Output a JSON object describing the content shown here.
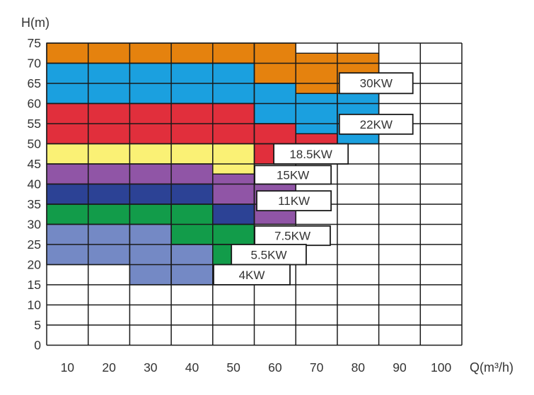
{
  "page": {
    "background": "#ffffff",
    "description": "Pump motor power selection chart: head H(m) versus flow Q(m3/h)"
  },
  "chart_data": {
    "type": "heatmap",
    "title": "",
    "xlabel": "Q(m³/h)",
    "ylabel": "H(m)",
    "xlim": [
      0,
      100
    ],
    "ylim": [
      0,
      75
    ],
    "x_step": 10,
    "y_step": 5,
    "grid": true,
    "x_ticks": [
      10,
      20,
      30,
      40,
      50,
      60,
      70,
      80,
      90,
      100
    ],
    "y_ticks": [
      75,
      70,
      65,
      60,
      55,
      50,
      45,
      40,
      35,
      30,
      25,
      20,
      15,
      10,
      5,
      0
    ],
    "colors": {
      "grid_line": "#1a1a1a",
      "box_border": "#1a1a1a",
      "box_fill": "#ffffff",
      "text": "#333333",
      "background": "#ffffff"
    },
    "regions": [
      {
        "label": "30KW",
        "power_kw": 30,
        "color": "#E5820E",
        "cells": [
          [
            0,
            50,
            70,
            75
          ],
          [
            50,
            60,
            65,
            75
          ],
          [
            60,
            80,
            62.5,
            72.5
          ]
        ]
      },
      {
        "label": "22KW",
        "power_kw": 22,
        "color": "#1BA0DF",
        "cells": [
          [
            0,
            50,
            60,
            70
          ],
          [
            50,
            60,
            55,
            65
          ],
          [
            60,
            70,
            52.5,
            62.5
          ],
          [
            70,
            80,
            50,
            62.5
          ]
        ]
      },
      {
        "label": "18.5KW",
        "power_kw": 18.5,
        "color": "#E12F3C",
        "cells": [
          [
            0,
            50,
            50,
            60
          ],
          [
            50,
            60,
            50,
            55
          ],
          [
            50,
            55,
            45,
            50
          ],
          [
            60,
            70,
            50,
            52.5
          ]
        ]
      },
      {
        "label": "15KW",
        "power_kw": 15,
        "color": "#FAF175",
        "cells": [
          [
            0,
            40,
            45,
            50
          ],
          [
            40,
            50,
            42.5,
            50
          ]
        ]
      },
      {
        "label": "11KW",
        "power_kw": 11,
        "color": "#9055A6",
        "cells": [
          [
            0,
            40,
            40,
            45
          ],
          [
            40,
            50,
            35,
            42.5
          ],
          [
            50,
            60,
            30,
            40
          ]
        ]
      },
      {
        "label": "7.5KW",
        "power_kw": 7.5,
        "color": "#2C4295",
        "cells": [
          [
            0,
            40,
            35,
            40
          ],
          [
            40,
            50,
            30,
            35
          ]
        ]
      },
      {
        "label": "5.5KW",
        "power_kw": 5.5,
        "color": "#129C4A",
        "cells": [
          [
            0,
            30,
            30,
            35
          ],
          [
            30,
            40,
            25,
            35
          ],
          [
            40,
            50,
            25,
            30
          ],
          [
            40,
            45,
            20,
            25
          ]
        ]
      },
      {
        "label": "4KW",
        "power_kw": 4,
        "color": "#7489C5",
        "cells": [
          [
            0,
            20,
            20,
            30
          ],
          [
            20,
            30,
            15,
            30
          ],
          [
            30,
            40,
            15,
            25
          ]
        ]
      }
    ],
    "label_boxes": [
      {
        "text": "30KW",
        "q": [
          70.5,
          88.2
        ],
        "h": [
          62.5,
          67.6
        ]
      },
      {
        "text": "22KW",
        "q": [
          70.5,
          88.2
        ],
        "h": [
          52.4,
          57.3
        ]
      },
      {
        "text": "18.5KW",
        "q": [
          54.7,
          72.6
        ],
        "h": [
          45.0,
          50.0
        ]
      },
      {
        "text": "15KW",
        "q": [
          50.1,
          68.5
        ],
        "h": [
          40.0,
          44.6
        ]
      },
      {
        "text": "11KW",
        "q": [
          50.6,
          68.5
        ],
        "h": [
          33.4,
          38.3
        ]
      },
      {
        "text": "7.5KW",
        "q": [
          50.1,
          68.3
        ],
        "h": [
          24.8,
          29.6
        ]
      },
      {
        "text": "5.5KW",
        "q": [
          44.5,
          62.5
        ],
        "h": [
          20.0,
          25.0
        ]
      },
      {
        "text": "4KW",
        "q": [
          40.2,
          58.6
        ],
        "h": [
          15.0,
          20.0
        ]
      }
    ]
  }
}
